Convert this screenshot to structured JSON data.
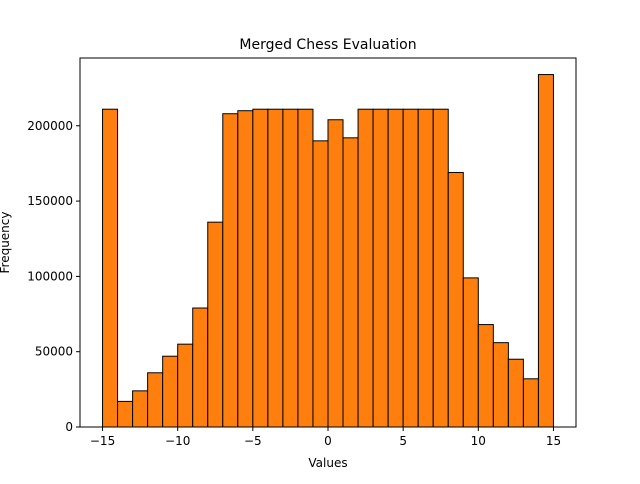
{
  "chart_data": {
    "type": "bar",
    "title": "Merged Chess Evaluation",
    "xlabel": "Values",
    "ylabel": "Frequency",
    "xlim": [
      -16.5,
      16.5
    ],
    "ylim": [
      0,
      245000
    ],
    "xticks": [
      -15,
      -10,
      -5,
      0,
      5,
      10,
      15
    ],
    "xtick_labels": [
      "−15",
      "−10",
      "−5",
      "0",
      "5",
      "10",
      "15"
    ],
    "yticks": [
      0,
      50000,
      100000,
      150000,
      200000
    ],
    "ytick_labels": [
      "0",
      "50000",
      "100000",
      "150000",
      "200000"
    ],
    "bar_color": "#ff7f0e",
    "edge_color": "#000000",
    "bin_edges": [
      -15,
      -14,
      -13,
      -12,
      -11,
      -10,
      -9,
      -8,
      -7,
      -6,
      -5,
      -4,
      -3,
      -2,
      -1,
      0,
      1,
      2,
      3,
      4,
      5,
      6,
      7,
      8,
      9,
      10,
      11,
      12,
      13,
      14,
      15
    ],
    "values": [
      211000,
      17000,
      24000,
      36000,
      47000,
      55000,
      79000,
      136000,
      208000,
      210000,
      211000,
      211000,
      211000,
      211000,
      190000,
      204000,
      192000,
      211000,
      211000,
      211000,
      211000,
      211000,
      211000,
      169000,
      99000,
      68000,
      56000,
      45000,
      32000,
      234000
    ],
    "grid": false,
    "legend": "none"
  }
}
